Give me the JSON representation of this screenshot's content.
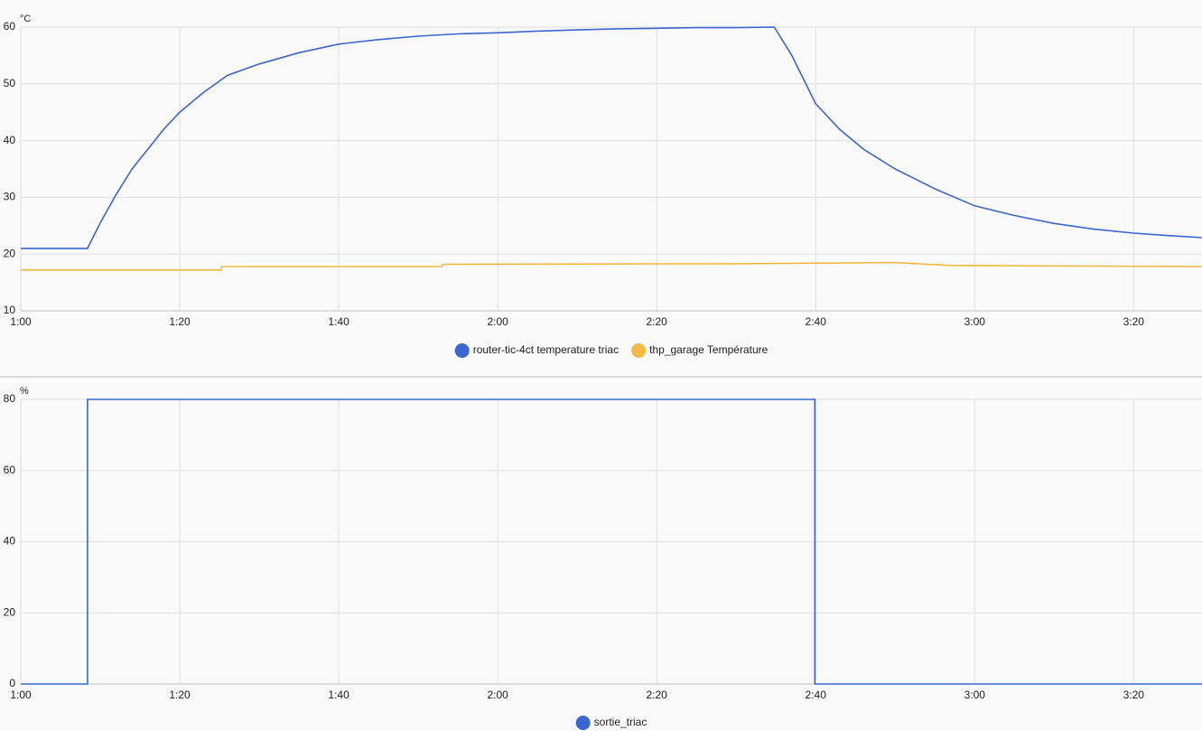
{
  "chart_data": [
    {
      "type": "line",
      "ylabel": "°C",
      "xlim": [
        60,
        208.6
      ],
      "ylim": [
        10,
        60
      ],
      "xticks": [
        {
          "value": 60,
          "label": "1:00"
        },
        {
          "value": 80,
          "label": "1:20"
        },
        {
          "value": 100,
          "label": "1:40"
        },
        {
          "value": 120,
          "label": "2:00"
        },
        {
          "value": 140,
          "label": "2:20"
        },
        {
          "value": 160,
          "label": "2:40"
        },
        {
          "value": 180,
          "label": "3:00"
        },
        {
          "value": 200,
          "label": "3:20"
        }
      ],
      "yticks": [
        10,
        20,
        30,
        40,
        50,
        60
      ],
      "grid": true,
      "series": [
        {
          "name": "router-tic-4ct temperature triac",
          "color": "#3b66cf",
          "x": [
            60,
            68.4,
            70,
            72,
            74,
            76,
            78,
            80,
            83,
            86,
            90,
            95,
            100,
            105,
            110,
            115,
            120,
            125,
            130,
            135,
            140,
            145,
            150,
            154.8,
            157,
            160,
            163,
            166,
            170,
            175,
            180,
            185,
            190,
            195,
            200,
            205,
            208.6
          ],
          "values": [
            21,
            21,
            25.5,
            30.5,
            35,
            38.5,
            42,
            45,
            48.5,
            51.5,
            53.5,
            55.5,
            57,
            57.8,
            58.4,
            58.8,
            59,
            59.3,
            59.5,
            59.7,
            59.8,
            59.9,
            59.9,
            60,
            55,
            46.5,
            42,
            38.5,
            35,
            31.5,
            28.5,
            26.8,
            25.4,
            24.4,
            23.7,
            23.2,
            22.9
          ]
        },
        {
          "name": "thp_garage Température",
          "color": "#f4b942",
          "x": [
            60,
            85.2,
            85.3,
            113,
            113.1,
            150,
            170,
            177,
            208.6
          ],
          "values": [
            17.2,
            17.2,
            17.8,
            17.8,
            18.2,
            18.3,
            18.5,
            18.0,
            17.8
          ]
        }
      ]
    },
    {
      "type": "line",
      "ylabel": "%",
      "xlim": [
        60,
        208.6
      ],
      "ylim": [
        0,
        80
      ],
      "xticks": [
        {
          "value": 60,
          "label": "1:00"
        },
        {
          "value": 80,
          "label": "1:20"
        },
        {
          "value": 100,
          "label": "1:40"
        },
        {
          "value": 120,
          "label": "2:00"
        },
        {
          "value": 140,
          "label": "2:20"
        },
        {
          "value": 160,
          "label": "2:40"
        },
        {
          "value": 180,
          "label": "3:00"
        },
        {
          "value": 200,
          "label": "3:20"
        }
      ],
      "yticks": [
        0,
        20,
        40,
        60,
        80
      ],
      "grid": true,
      "series": [
        {
          "name": "sortie_triac",
          "color": "#3b66cf",
          "x": [
            60,
            68.4,
            68.4,
            159.9,
            159.9,
            208.6
          ],
          "values": [
            0,
            0,
            80,
            80,
            0,
            0
          ]
        }
      ]
    }
  ]
}
